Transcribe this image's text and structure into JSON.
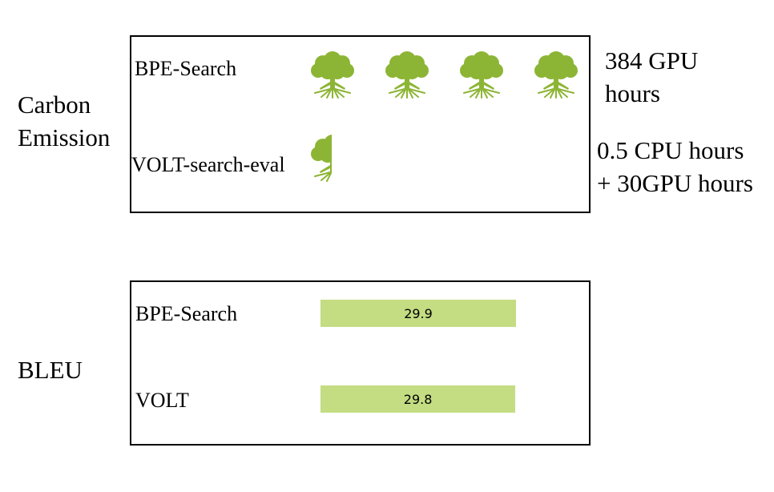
{
  "carbon": {
    "section_label_line1": "Carbon",
    "section_label_line2": "Emission",
    "rows": [
      {
        "label": "BPE-Search",
        "trees": 4,
        "note_line1": "384 GPU",
        "note_line2": "hours"
      },
      {
        "label": "VOLT-search-eval",
        "trees": 0.5,
        "note_line1": "0.5 CPU hours",
        "note_line2": "+ 30GPU hours"
      }
    ],
    "icon": "tree-icon",
    "icon_color": "#8db535"
  },
  "bleu": {
    "section_label": "BLEU",
    "rows": [
      {
        "label": "BPE-Search",
        "value": "29.9"
      },
      {
        "label": "VOLT",
        "value": "29.8"
      }
    ],
    "bar_color": "#c4dc82"
  }
}
